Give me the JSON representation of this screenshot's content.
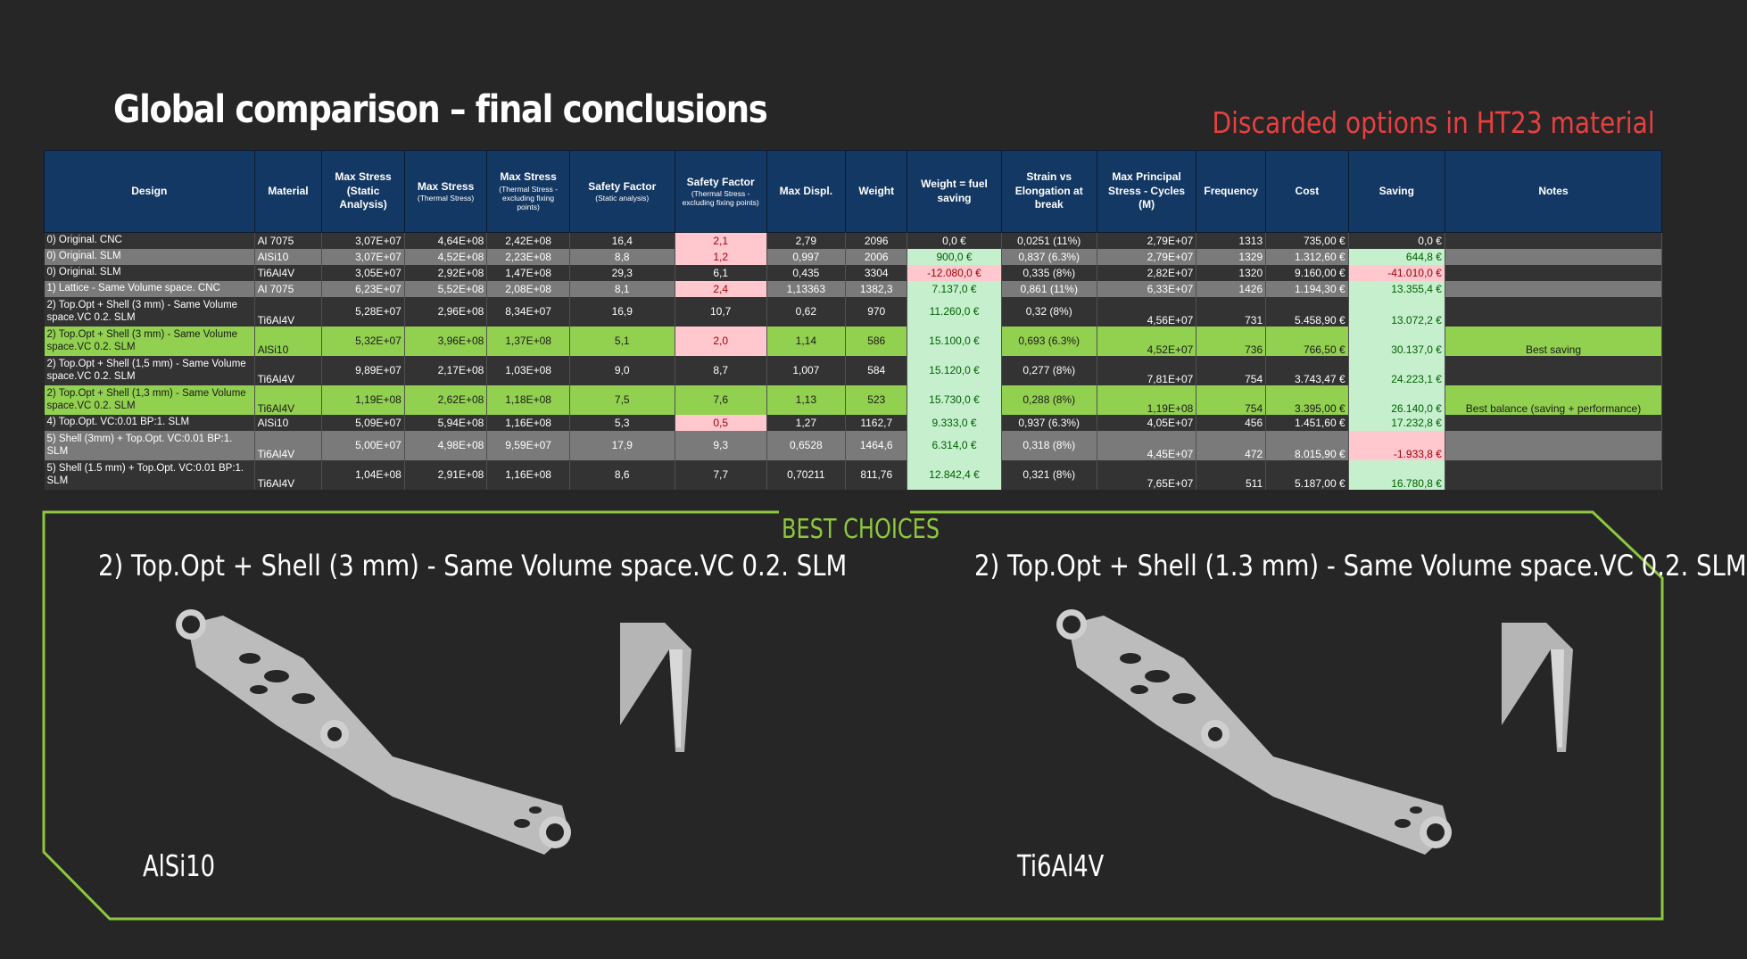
{
  "title": "Global comparison – final conclusions",
  "discarded_note": "Discarded options in HT23 material",
  "columns": [
    {
      "label": "Design",
      "sub": ""
    },
    {
      "label": "Material",
      "sub": ""
    },
    {
      "label": "Max Stress (Static Analysis)",
      "sub": ""
    },
    {
      "label": "Max Stress",
      "sub": "(Thermal Stress)"
    },
    {
      "label": "Max Stress",
      "sub": "(Thermal Stress - excluding fixing points)"
    },
    {
      "label": "Safety Factor",
      "sub": "(Static analysis)"
    },
    {
      "label": "Safety Factor",
      "sub": "(Thermal Stress - excluding fixing points)"
    },
    {
      "label": "Max Displ.",
      "sub": ""
    },
    {
      "label": "Weight",
      "sub": ""
    },
    {
      "label": "Weight = fuel saving",
      "sub": ""
    },
    {
      "label": "Strain vs Elongation at break",
      "sub": ""
    },
    {
      "label": "Max Principal Stress - Cycles (M)",
      "sub": ""
    },
    {
      "label": "Frequency",
      "sub": ""
    },
    {
      "label": "Cost",
      "sub": ""
    },
    {
      "label": "Saving",
      "sub": ""
    },
    {
      "label": "Notes",
      "sub": ""
    }
  ],
  "rows": [
    {
      "design": "0) Original. CNC",
      "material": "Al 7075",
      "max_stress_static": "3,07E+07",
      "max_stress_thermal": "4,64E+08",
      "max_stress_thermal_excl": "2,42E+08",
      "sf_static": "16,4",
      "sf_thermal": "2,1",
      "max_displ": "2,79",
      "weight": "2096",
      "fuel_saving": "0,0 €",
      "strain": "0,0251 (11%)",
      "principal_cycles": "2,79E+07",
      "frequency": "1313",
      "cost": "735,00 €",
      "saving": "0,0 €",
      "notes": ""
    },
    {
      "design": "0) Original. SLM",
      "material": "AlSi10",
      "max_stress_static": "3,07E+07",
      "max_stress_thermal": "4,52E+08",
      "max_stress_thermal_excl": "2,23E+08",
      "sf_static": "8,8",
      "sf_thermal": "1,2",
      "max_displ": "0,997",
      "weight": "2006",
      "fuel_saving": "900,0 €",
      "strain": "0,837 (6.3%)",
      "principal_cycles": "2,79E+07",
      "frequency": "1329",
      "cost": "1.312,60 €",
      "saving": "644,8 €",
      "notes": ""
    },
    {
      "design": "0) Original. SLM",
      "material": "Ti6Al4V",
      "max_stress_static": "3,05E+07",
      "max_stress_thermal": "2,92E+08",
      "max_stress_thermal_excl": "1,47E+08",
      "sf_static": "29,3",
      "sf_thermal": "6,1",
      "max_displ": "0,435",
      "weight": "3304",
      "fuel_saving": "-12.080,0 €",
      "strain": "0,335 (8%)",
      "principal_cycles": "2,82E+07",
      "frequency": "1320",
      "cost": "9.160,00 €",
      "saving": "-41.010,0 €",
      "notes": ""
    },
    {
      "design": "1) Lattice - Same Volume space. CNC",
      "material": "Al 7075",
      "max_stress_static": "6,23E+07",
      "max_stress_thermal": "5,52E+08",
      "max_stress_thermal_excl": "2,08E+08",
      "sf_static": "8,1",
      "sf_thermal": "2,4",
      "max_displ": "1,13363",
      "weight": "1382,3",
      "fuel_saving": "7.137,0 €",
      "strain": "0,861 (11%)",
      "principal_cycles": "6,33E+07",
      "frequency": "1426",
      "cost": "1.194,30 €",
      "saving": "13.355,4 €",
      "notes": ""
    },
    {
      "design": "2) Top.Opt + Shell (3 mm) - Same Volume space.VC 0.2. SLM",
      "material": "Ti6Al4V",
      "max_stress_static": "5,28E+07",
      "max_stress_thermal": "2,96E+08",
      "max_stress_thermal_excl": "8,34E+07",
      "sf_static": "16,9",
      "sf_thermal": "10,7",
      "max_displ": "0,62",
      "weight": "970",
      "fuel_saving": "11.260,0 €",
      "strain": "0,32 (8%)",
      "principal_cycles": "4,56E+07",
      "frequency": "731",
      "cost": "5.458,90 €",
      "saving": "13.072,2 €",
      "notes": ""
    },
    {
      "design": "2) Top.Opt + Shell (3 mm) - Same Volume space.VC 0.2. SLM",
      "material": "AlSi10",
      "max_stress_static": "5,32E+07",
      "max_stress_thermal": "3,96E+08",
      "max_stress_thermal_excl": "1,37E+08",
      "sf_static": "5,1",
      "sf_thermal": "2,0",
      "max_displ": "1,14",
      "weight": "586",
      "fuel_saving": "15.100,0 €",
      "strain": "0,693 (6.3%)",
      "principal_cycles": "4,52E+07",
      "frequency": "736",
      "cost": "766,50 €",
      "saving": "30.137,0 €",
      "notes": "Best saving"
    },
    {
      "design": "2) Top.Opt + Shell (1,5 mm) - Same Volume space.VC 0.2. SLM",
      "material": "Ti6Al4V",
      "max_stress_static": "9,89E+07",
      "max_stress_thermal": "2,17E+08",
      "max_stress_thermal_excl": "1,03E+08",
      "sf_static": "9,0",
      "sf_thermal": "8,7",
      "max_displ": "1,007",
      "weight": "584",
      "fuel_saving": "15.120,0 €",
      "strain": "0,277 (8%)",
      "principal_cycles": "7,81E+07",
      "frequency": "754",
      "cost": "3.743,47 €",
      "saving": "24.223,1 €",
      "notes": ""
    },
    {
      "design": "2) Top.Opt + Shell (1,3 mm) - Same Volume space.VC 0.2. SLM",
      "material": "Ti6Al4V",
      "max_stress_static": "1,19E+08",
      "max_stress_thermal": "2,62E+08",
      "max_stress_thermal_excl": "1,18E+08",
      "sf_static": "7,5",
      "sf_thermal": "7,6",
      "max_displ": "1,13",
      "weight": "523",
      "fuel_saving": "15.730,0 €",
      "strain": "0,288 (8%)",
      "principal_cycles": "1,19E+08",
      "frequency": "754",
      "cost": "3.395,00 €",
      "saving": "26.140,0 €",
      "notes": "Best balance (saving + performance)"
    },
    {
      "design": "4) Top.Opt. VC:0.01 BP:1. SLM",
      "material": "AlSi10",
      "max_stress_static": "5,09E+07",
      "max_stress_thermal": "5,94E+08",
      "max_stress_thermal_excl": "1,16E+08",
      "sf_static": "5,3",
      "sf_thermal": "0,5",
      "max_displ": "1,27",
      "weight": "1162,7",
      "fuel_saving": "9.333,0 €",
      "strain": "0,937 (6.3%)",
      "principal_cycles": "4,05E+07",
      "frequency": "456",
      "cost": "1.451,60 €",
      "saving": "17.232,8 €",
      "notes": ""
    },
    {
      "design": "5) Shell (3mm) + Top.Opt. VC:0.01 BP:1. SLM",
      "material": "Ti6Al4V",
      "max_stress_static": "5,00E+07",
      "max_stress_thermal": "4,98E+08",
      "max_stress_thermal_excl": "9,59E+07",
      "sf_static": "17,9",
      "sf_thermal": "9,3",
      "max_displ": "0,6528",
      "weight": "1464,6",
      "fuel_saving": "6.314,0 €",
      "strain": "0,318 (8%)",
      "principal_cycles": "4,45E+07",
      "frequency": "472",
      "cost": "8.015,90 €",
      "saving": "-1.933,8 €",
      "notes": ""
    },
    {
      "design": "5) Shell (1.5 mm) + Top.Opt. VC:0.01 BP:1. SLM",
      "material": "Ti6Al4V",
      "max_stress_static": "1,04E+08",
      "max_stress_thermal": "2,91E+08",
      "max_stress_thermal_excl": "1,16E+08",
      "sf_static": "8,6",
      "sf_thermal": "7,7",
      "max_displ": "0,70211",
      "weight": "811,76",
      "fuel_saving": "12.842,4 €",
      "strain": "0,321 (8%)",
      "principal_cycles": "7,65E+07",
      "frequency": "511",
      "cost": "5.187,00 €",
      "saving": "16.780,8 €",
      "notes": ""
    }
  ],
  "best_choices": {
    "label": "BEST CHOICES",
    "left": {
      "title": "2) Top.Opt + Shell (3 mm) - Same Volume space.VC 0.2. SLM",
      "material": "AlSi10"
    },
    "right": {
      "title": "2) Top.Opt + Shell (1.3 mm) - Same Volume space.VC 0.2. SLM",
      "material": "Ti6Al4V"
    }
  },
  "colors": {
    "background": "#262626",
    "header_blue": "#143864",
    "row_dark": "#333333",
    "row_gray": "#7a7a7a",
    "row_highlight_green": "#92d050",
    "cell_green": "#c6efce",
    "cell_red": "#ffc7ce",
    "accent_green": "#8dc73f",
    "discarded_red": "#e84040"
  }
}
